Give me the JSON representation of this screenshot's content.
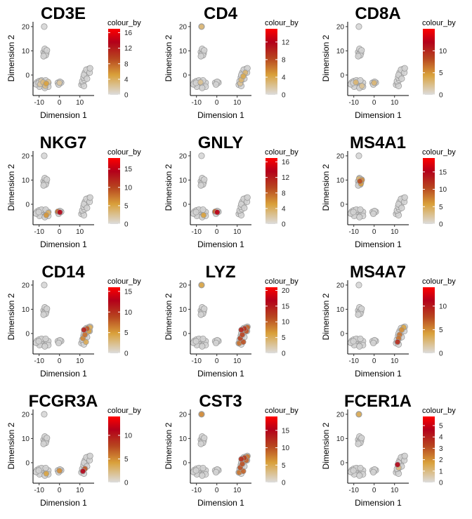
{
  "chart_data": [
    {
      "type": "scatter",
      "title": "CD3E",
      "xlabel": "Dimension 1",
      "ylabel": "Dimension 2",
      "xticks": [
        -10,
        0,
        10
      ],
      "yticks": [
        0,
        10,
        20
      ],
      "xlim": [
        -13,
        17
      ],
      "ylim": [
        -7,
        22
      ],
      "legend_title": "colour_by",
      "legend_range": [
        0,
        17
      ],
      "legend_ticks": [
        0,
        4,
        8,
        12,
        16
      ],
      "highlight": [
        {
          "x": -8,
          "y": -3,
          "v": 3
        },
        {
          "x": -6.5,
          "y": -3.5,
          "v": 5
        },
        {
          "x": -9,
          "y": -2.5,
          "v": 2
        },
        {
          "x": -7,
          "y": -4.5,
          "v": 3
        },
        {
          "x": -5.5,
          "y": -2.8,
          "v": 2
        },
        {
          "x": 0,
          "y": -3.2,
          "v": 2
        },
        {
          "x": -9.5,
          "y": -3.8,
          "v": 2
        }
      ]
    },
    {
      "type": "scatter",
      "title": "CD4",
      "xlabel": "Dimension 1",
      "ylabel": "Dimension 2",
      "xticks": [
        -10,
        0,
        10
      ],
      "yticks": [
        0,
        10,
        20
      ],
      "xlim": [
        -13,
        17
      ],
      "ylim": [
        -7,
        22
      ],
      "legend_title": "colour_by",
      "legend_range": [
        0,
        15
      ],
      "legend_ticks": [
        0,
        4,
        8,
        12
      ],
      "highlight": [
        {
          "x": -7.5,
          "y": 20,
          "v": 3
        },
        {
          "x": -8,
          "y": -3,
          "v": 2
        },
        {
          "x": 12,
          "y": -2,
          "v": 3
        },
        {
          "x": 13,
          "y": -0.5,
          "v": 4
        },
        {
          "x": 11.5,
          "y": -3.5,
          "v": 2
        },
        {
          "x": 14,
          "y": 1,
          "v": 3
        }
      ]
    },
    {
      "type": "scatter",
      "title": "CD8A",
      "xlabel": "Dimension 1",
      "ylabel": "Dimension 2",
      "xticks": [
        -10,
        0,
        10
      ],
      "yticks": [
        0,
        10,
        20
      ],
      "xlim": [
        -13,
        17
      ],
      "ylim": [
        -7,
        22
      ],
      "legend_title": "colour_by",
      "legend_range": [
        0,
        15
      ],
      "legend_ticks": [
        0,
        5,
        10
      ],
      "highlight": [
        {
          "x": -9,
          "y": -3,
          "v": 3
        },
        {
          "x": -6,
          "y": -4.5,
          "v": 2
        },
        {
          "x": 0,
          "y": -3.2,
          "v": 3
        }
      ]
    },
    {
      "type": "scatter",
      "title": "NKG7",
      "xlabel": "Dimension 1",
      "ylabel": "Dimension 2",
      "xticks": [
        -10,
        0,
        10
      ],
      "yticks": [
        0,
        10,
        20
      ],
      "xlim": [
        -13,
        17
      ],
      "ylim": [
        -7,
        22
      ],
      "legend_title": "colour_by",
      "legend_range": [
        0,
        18
      ],
      "legend_ticks": [
        0,
        5,
        10,
        15
      ],
      "highlight": [
        {
          "x": 0.2,
          "y": -3.3,
          "v": 14
        },
        {
          "x": -6.5,
          "y": -4.5,
          "v": 6
        },
        {
          "x": -5.5,
          "y": -3.5,
          "v": 4
        },
        {
          "x": -0.8,
          "y": -3,
          "v": 8
        }
      ]
    },
    {
      "type": "scatter",
      "title": "GNLY",
      "xlabel": "Dimension 1",
      "ylabel": "Dimension 2",
      "xticks": [
        -10,
        0,
        10
      ],
      "yticks": [
        0,
        10,
        20
      ],
      "xlim": [
        -13,
        17
      ],
      "ylim": [
        -7,
        22
      ],
      "legend_title": "colour_by",
      "legend_range": [
        0,
        17
      ],
      "legend_ticks": [
        0,
        4,
        8,
        12,
        16
      ],
      "highlight": [
        {
          "x": 0.2,
          "y": -3.3,
          "v": 14
        },
        {
          "x": -6.5,
          "y": -4.5,
          "v": 5
        },
        {
          "x": -0.8,
          "y": -3,
          "v": 8
        }
      ]
    },
    {
      "type": "scatter",
      "title": "MS4A1",
      "xlabel": "Dimension 1",
      "ylabel": "Dimension 2",
      "xticks": [
        -10,
        0,
        10
      ],
      "yticks": [
        0,
        10,
        20
      ],
      "xlim": [
        -13,
        17
      ],
      "ylim": [
        -7,
        22
      ],
      "legend_title": "colour_by",
      "legend_range": [
        0,
        19
      ],
      "legend_ticks": [
        0,
        5,
        10,
        15
      ],
      "highlight": [
        {
          "x": -7,
          "y": 9.5,
          "v": 10
        },
        {
          "x": -6.5,
          "y": 8.5,
          "v": 6
        },
        {
          "x": -7.5,
          "y": 10.5,
          "v": 4
        },
        {
          "x": -6,
          "y": 10,
          "v": 7
        }
      ]
    },
    {
      "type": "scatter",
      "title": "CD14",
      "xlabel": "Dimension 1",
      "ylabel": "Dimension 2",
      "xticks": [
        -10,
        0,
        10
      ],
      "yticks": [
        0,
        10,
        20
      ],
      "xlim": [
        -13,
        17
      ],
      "ylim": [
        -7,
        22
      ],
      "legend_title": "colour_by",
      "legend_range": [
        0,
        16
      ],
      "legend_ticks": [
        0,
        5,
        10,
        15
      ],
      "highlight": [
        {
          "x": 12,
          "y": 1.5,
          "v": 11
        },
        {
          "x": 13.5,
          "y": 2,
          "v": 8
        },
        {
          "x": 11.5,
          "y": -2,
          "v": 6
        },
        {
          "x": 14.5,
          "y": 1,
          "v": 5
        },
        {
          "x": 12.5,
          "y": -0.5,
          "v": 7
        },
        {
          "x": 13,
          "y": -3.5,
          "v": 4
        },
        {
          "x": 15,
          "y": 2.5,
          "v": 4
        }
      ]
    },
    {
      "type": "scatter",
      "title": "LYZ",
      "xlabel": "Dimension 1",
      "ylabel": "Dimension 2",
      "xticks": [
        -10,
        0,
        10
      ],
      "yticks": [
        0,
        10,
        20
      ],
      "xlim": [
        -13,
        17
      ],
      "ylim": [
        -7,
        22
      ],
      "legend_title": "colour_by",
      "legend_range": [
        0,
        21
      ],
      "legend_ticks": [
        0,
        5,
        10,
        15,
        20
      ],
      "highlight": [
        {
          "x": 12,
          "y": 1.5,
          "v": 14
        },
        {
          "x": 13.5,
          "y": 2,
          "v": 13
        },
        {
          "x": 11.5,
          "y": -2,
          "v": 12
        },
        {
          "x": 14.5,
          "y": 1,
          "v": 11
        },
        {
          "x": 12.5,
          "y": -0.5,
          "v": 12
        },
        {
          "x": 13,
          "y": -3.5,
          "v": 11
        },
        {
          "x": 15,
          "y": 2.5,
          "v": 10
        },
        {
          "x": 11,
          "y": -4,
          "v": 9
        },
        {
          "x": -7.5,
          "y": 20,
          "v": 6
        }
      ]
    },
    {
      "type": "scatter",
      "title": "MS4A7",
      "xlabel": "Dimension 1",
      "ylabel": "Dimension 2",
      "xticks": [
        -10,
        0,
        10
      ],
      "yticks": [
        0,
        10,
        20
      ],
      "xlim": [
        -13,
        17
      ],
      "ylim": [
        -7,
        22
      ],
      "legend_title": "colour_by",
      "legend_range": [
        0,
        14
      ],
      "legend_ticks": [
        0,
        5,
        10
      ],
      "highlight": [
        {
          "x": 11.5,
          "y": -3.5,
          "v": 9
        },
        {
          "x": 12.5,
          "y": -0.5,
          "v": 6
        },
        {
          "x": 13.5,
          "y": 1.5,
          "v": 5
        },
        {
          "x": 12,
          "y": -2,
          "v": 6
        },
        {
          "x": 14.5,
          "y": 2.5,
          "v": 4
        }
      ]
    },
    {
      "type": "scatter",
      "title": "FCGR3A",
      "xlabel": "Dimension 1",
      "ylabel": "Dimension 2",
      "xticks": [
        -10,
        0,
        10
      ],
      "yticks": [
        0,
        10,
        20
      ],
      "xlim": [
        -13,
        17
      ],
      "ylim": [
        -7,
        22
      ],
      "legend_title": "colour_by",
      "legend_range": [
        0,
        14
      ],
      "legend_ticks": [
        0,
        5,
        10
      ],
      "highlight": [
        {
          "x": 11.5,
          "y": -3.5,
          "v": 11
        },
        {
          "x": 12.5,
          "y": -2.5,
          "v": 7
        },
        {
          "x": 0,
          "y": -3.3,
          "v": 5
        },
        {
          "x": -6.5,
          "y": -4.5,
          "v": 4
        }
      ]
    },
    {
      "type": "scatter",
      "title": "CST3",
      "xlabel": "Dimension 1",
      "ylabel": "Dimension 2",
      "xticks": [
        -10,
        0,
        10
      ],
      "yticks": [
        0,
        10,
        20
      ],
      "xlim": [
        -13,
        17
      ],
      "ylim": [
        -7,
        22
      ],
      "legend_title": "colour_by",
      "legend_range": [
        0,
        19
      ],
      "legend_ticks": [
        0,
        5,
        10,
        15
      ],
      "highlight": [
        {
          "x": -7.5,
          "y": 20,
          "v": 7
        },
        {
          "x": 12,
          "y": 1.5,
          "v": 12
        },
        {
          "x": 13.5,
          "y": 2,
          "v": 11
        },
        {
          "x": 11.5,
          "y": -2,
          "v": 10
        },
        {
          "x": 14.5,
          "y": 1,
          "v": 9
        },
        {
          "x": 12.5,
          "y": -0.5,
          "v": 10
        },
        {
          "x": 13,
          "y": -3.5,
          "v": 9
        },
        {
          "x": 11,
          "y": -4,
          "v": 8
        },
        {
          "x": 15,
          "y": 2.5,
          "v": 8
        }
      ]
    },
    {
      "type": "scatter",
      "title": "FCER1A",
      "xlabel": "Dimension 1",
      "ylabel": "Dimension 2",
      "xticks": [
        -10,
        0,
        10
      ],
      "yticks": [
        0,
        10,
        20
      ],
      "xlim": [
        -13,
        17
      ],
      "ylim": [
        -7,
        22
      ],
      "legend_title": "colour_by",
      "legend_range": [
        0,
        5.8
      ],
      "legend_ticks": [
        0,
        1,
        2,
        3,
        4,
        5
      ],
      "highlight": [
        {
          "x": -7.5,
          "y": 20,
          "v": 1.5
        },
        {
          "x": 11.5,
          "y": -0.8,
          "v": 4.5
        },
        {
          "x": 12,
          "y": -2,
          "v": 1
        }
      ]
    }
  ],
  "base_points": [
    [
      -7.5,
      20
    ],
    [
      -7.8,
      9.5
    ],
    [
      -7,
      10
    ],
    [
      -6.5,
      9
    ],
    [
      -7.5,
      8.5
    ],
    [
      -6.8,
      8.2
    ],
    [
      -7.2,
      10.8
    ],
    [
      -6.2,
      10.2
    ],
    [
      -7.8,
      7.8
    ],
    [
      -11,
      -3
    ],
    [
      -10.5,
      -4
    ],
    [
      -10,
      -2.5
    ],
    [
      -9.5,
      -3.5
    ],
    [
      -9,
      -4.5
    ],
    [
      -8.5,
      -3
    ],
    [
      -8,
      -4
    ],
    [
      -8,
      -2.5
    ],
    [
      -7.5,
      -3.5
    ],
    [
      -7,
      -4.8
    ],
    [
      -6.5,
      -3
    ],
    [
      -6,
      -4
    ],
    [
      -5.5,
      -3.2
    ],
    [
      -9.8,
      -4.8
    ],
    [
      -8.8,
      -2.2
    ],
    [
      -6.8,
      -2.2
    ],
    [
      -5.5,
      -4.8
    ],
    [
      -11.5,
      -3.8
    ],
    [
      -10.2,
      -3.2
    ],
    [
      -7.2,
      -5.3
    ],
    [
      -0.8,
      -3.2
    ],
    [
      0,
      -3.5
    ],
    [
      0.8,
      -3.1
    ],
    [
      0.2,
      -2.8
    ],
    [
      -0.4,
      -3.9
    ],
    [
      10.8,
      -4
    ],
    [
      11.5,
      -3.5
    ],
    [
      12,
      -4.5
    ],
    [
      11.2,
      -2.5
    ],
    [
      12.3,
      -2
    ],
    [
      11.8,
      -1
    ],
    [
      12.8,
      -0.5
    ],
    [
      13.3,
      0.5
    ],
    [
      12.5,
      1
    ],
    [
      13.8,
      1.5
    ],
    [
      14.3,
      2.5
    ],
    [
      13.2,
      2.2
    ],
    [
      14.8,
      1
    ],
    [
      15,
      2.8
    ],
    [
      12,
      0
    ],
    [
      13.5,
      -1.5
    ]
  ],
  "colors": {
    "base_fill": "#d3d3d3",
    "base_stroke": "#9a9a9a",
    "scale_low": "#dcdcdc",
    "scale_mid1": "#d9a13b",
    "scale_mid2": "#b7461f",
    "scale_mid3": "#b3001a",
    "scale_high": "#ff0000"
  }
}
